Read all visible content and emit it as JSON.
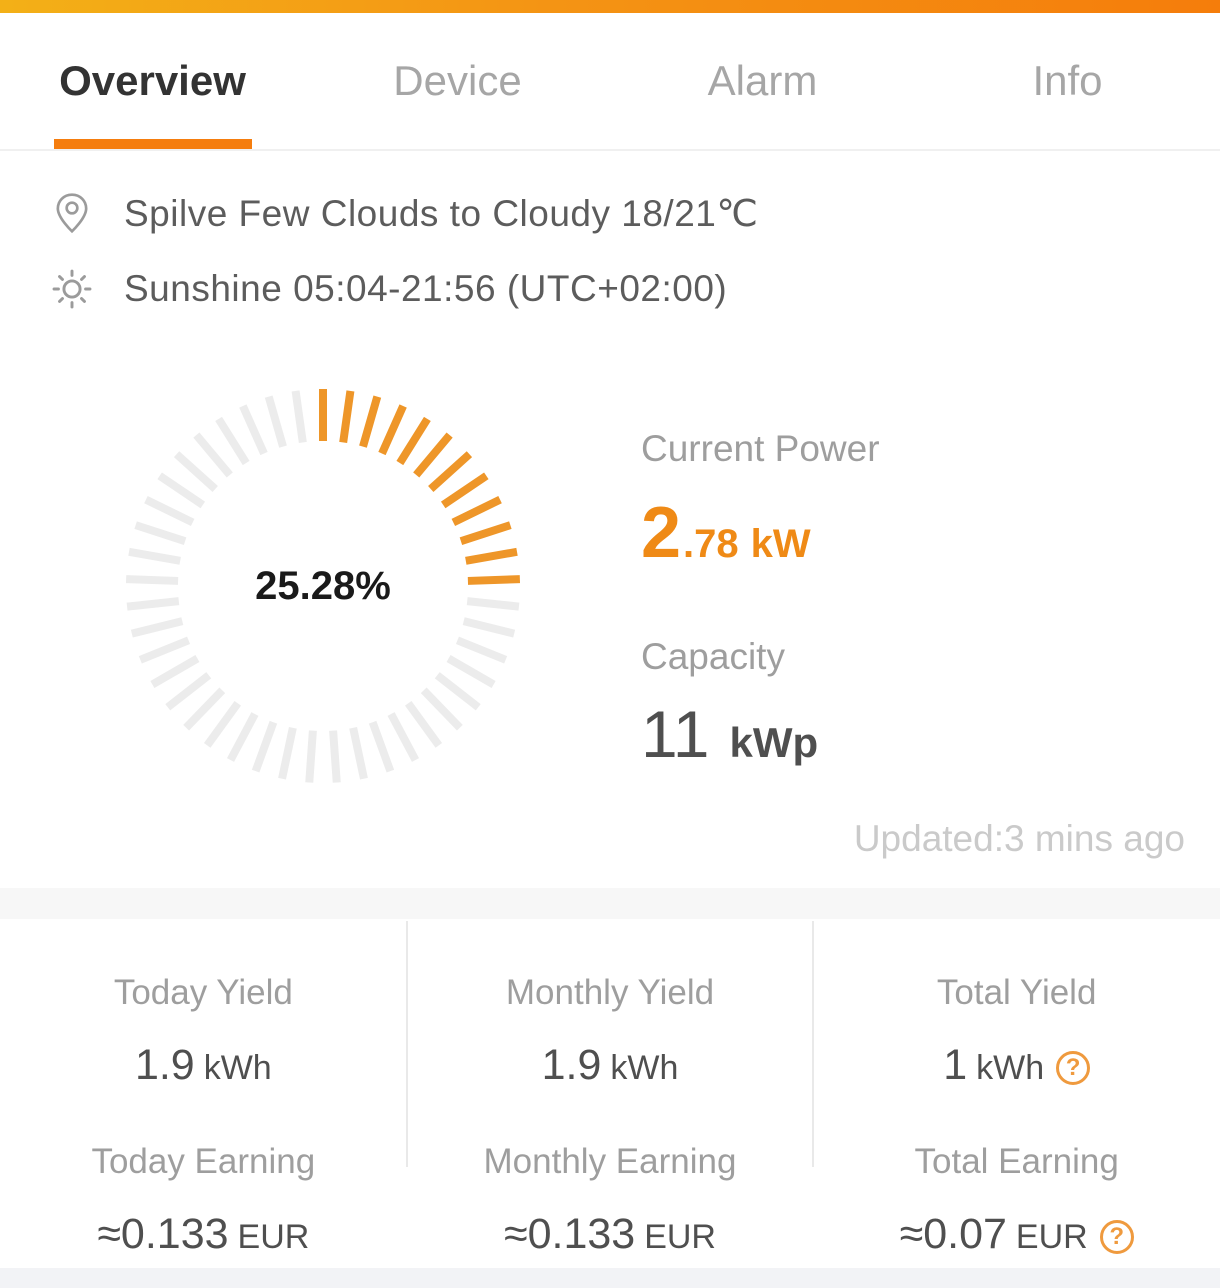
{
  "colors": {
    "accent": "#f57d0e",
    "power_orange": "#ef8a16",
    "tick_orange": "#ee9629",
    "tick_gray": "#ececec",
    "help_orange": "#ef9a3e"
  },
  "tabs": [
    {
      "label": "Overview",
      "active": true
    },
    {
      "label": "Device",
      "active": false
    },
    {
      "label": "Alarm",
      "active": false
    },
    {
      "label": "Info",
      "active": false
    }
  ],
  "weather": {
    "location_line": "Spilve Few Clouds to Cloudy 18/21℃",
    "sunshine_line": "Sunshine  05:04-21:56 (UTC+02:00)"
  },
  "gauge": {
    "percent": 25.28,
    "percent_label": "25.28%"
  },
  "power": {
    "label": "Current Power",
    "value_int": "2",
    "value_frac": ".78",
    "unit": "kW"
  },
  "capacity": {
    "label": "Capacity",
    "value": "11",
    "unit": "kWp"
  },
  "updated": "Updated:3 mins ago",
  "stats": {
    "columns": [
      {
        "yield_label": "Today Yield",
        "yield_value": "1.9",
        "yield_unit": "kWh",
        "earning_label": "Today Earning",
        "earning_value": "≈0.133",
        "earning_unit": "EUR"
      },
      {
        "yield_label": "Monthly Yield",
        "yield_value": "1.9",
        "yield_unit": "kWh",
        "earning_label": "Monthly Earning",
        "earning_value": "≈0.133",
        "earning_unit": "EUR"
      },
      {
        "yield_label": "Total Yield",
        "yield_value": "1",
        "yield_unit": "kWh",
        "earning_label": "Total Earning",
        "earning_value": "≈0.07",
        "earning_unit": "EUR"
      }
    ]
  }
}
